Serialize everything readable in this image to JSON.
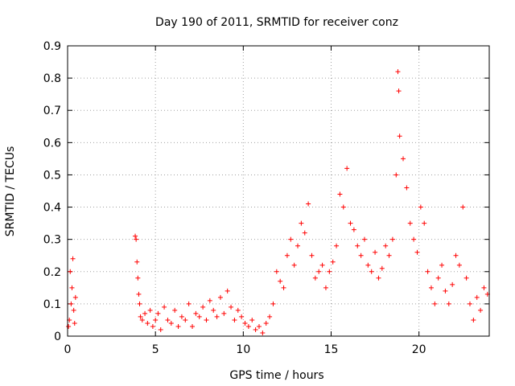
{
  "chart_data": {
    "type": "scatter",
    "title": "Day 190 of 2011, SRMTID for receiver conz",
    "xlabel": "GPS time / hours",
    "ylabel": "SRMTID / TECUs",
    "xlim": [
      0,
      24
    ],
    "ylim": [
      0,
      0.9
    ],
    "xticks": [
      0,
      5,
      10,
      15,
      20
    ],
    "yticks": [
      0,
      0.1,
      0.2,
      0.3,
      0.4,
      0.5,
      0.6,
      0.7,
      0.8,
      0.9
    ],
    "grid": true,
    "marker": "+",
    "color": "#ff0000",
    "series": [
      {
        "name": "conz",
        "x": [
          0.05,
          0.1,
          0.15,
          0.2,
          0.25,
          0.3,
          0.35,
          0.4,
          0.45,
          3.85,
          3.9,
          3.95,
          4.0,
          4.05,
          4.1,
          4.15,
          4.25,
          4.4,
          4.55,
          4.7,
          4.85,
          5.0,
          5.15,
          5.3,
          5.5,
          5.7,
          5.9,
          6.1,
          6.3,
          6.5,
          6.7,
          6.9,
          7.1,
          7.3,
          7.5,
          7.7,
          7.9,
          8.1,
          8.3,
          8.5,
          8.7,
          8.9,
          9.1,
          9.3,
          9.5,
          9.7,
          9.9,
          10.1,
          10.3,
          10.5,
          10.7,
          10.9,
          11.1,
          11.3,
          11.5,
          11.7,
          11.9,
          12.1,
          12.3,
          12.5,
          12.7,
          12.9,
          13.1,
          13.3,
          13.5,
          13.7,
          13.9,
          14.1,
          14.3,
          14.5,
          14.7,
          14.9,
          15.1,
          15.3,
          15.5,
          15.7,
          15.9,
          16.1,
          16.3,
          16.5,
          16.7,
          16.9,
          17.1,
          17.3,
          17.5,
          17.7,
          17.9,
          18.1,
          18.3,
          18.5,
          18.7,
          18.8,
          18.85,
          18.9,
          19.1,
          19.3,
          19.5,
          19.7,
          19.9,
          20.1,
          20.3,
          20.5,
          20.7,
          20.9,
          21.1,
          21.3,
          21.5,
          21.7,
          21.9,
          22.1,
          22.3,
          22.5,
          22.7,
          22.9,
          23.1,
          23.3,
          23.5,
          23.7,
          23.9
        ],
        "y": [
          0.03,
          0.05,
          0.2,
          0.1,
          0.15,
          0.24,
          0.08,
          0.04,
          0.12,
          0.31,
          0.3,
          0.23,
          0.18,
          0.13,
          0.1,
          0.06,
          0.05,
          0.07,
          0.04,
          0.08,
          0.03,
          0.05,
          0.07,
          0.02,
          0.09,
          0.05,
          0.04,
          0.08,
          0.03,
          0.06,
          0.05,
          0.1,
          0.03,
          0.07,
          0.06,
          0.09,
          0.05,
          0.11,
          0.08,
          0.06,
          0.12,
          0.07,
          0.14,
          0.09,
          0.05,
          0.08,
          0.06,
          0.04,
          0.03,
          0.05,
          0.02,
          0.03,
          0.01,
          0.04,
          0.06,
          0.1,
          0.2,
          0.17,
          0.15,
          0.25,
          0.3,
          0.22,
          0.28,
          0.35,
          0.32,
          0.41,
          0.25,
          0.18,
          0.2,
          0.22,
          0.15,
          0.2,
          0.23,
          0.28,
          0.44,
          0.4,
          0.52,
          0.35,
          0.33,
          0.28,
          0.25,
          0.3,
          0.22,
          0.2,
          0.26,
          0.18,
          0.21,
          0.28,
          0.25,
          0.3,
          0.5,
          0.82,
          0.76,
          0.62,
          0.55,
          0.46,
          0.35,
          0.3,
          0.26,
          0.4,
          0.35,
          0.2,
          0.15,
          0.1,
          0.18,
          0.22,
          0.14,
          0.1,
          0.16,
          0.25,
          0.22,
          0.4,
          0.18,
          0.1,
          0.05,
          0.12,
          0.08,
          0.15,
          0.13
        ]
      }
    ]
  }
}
